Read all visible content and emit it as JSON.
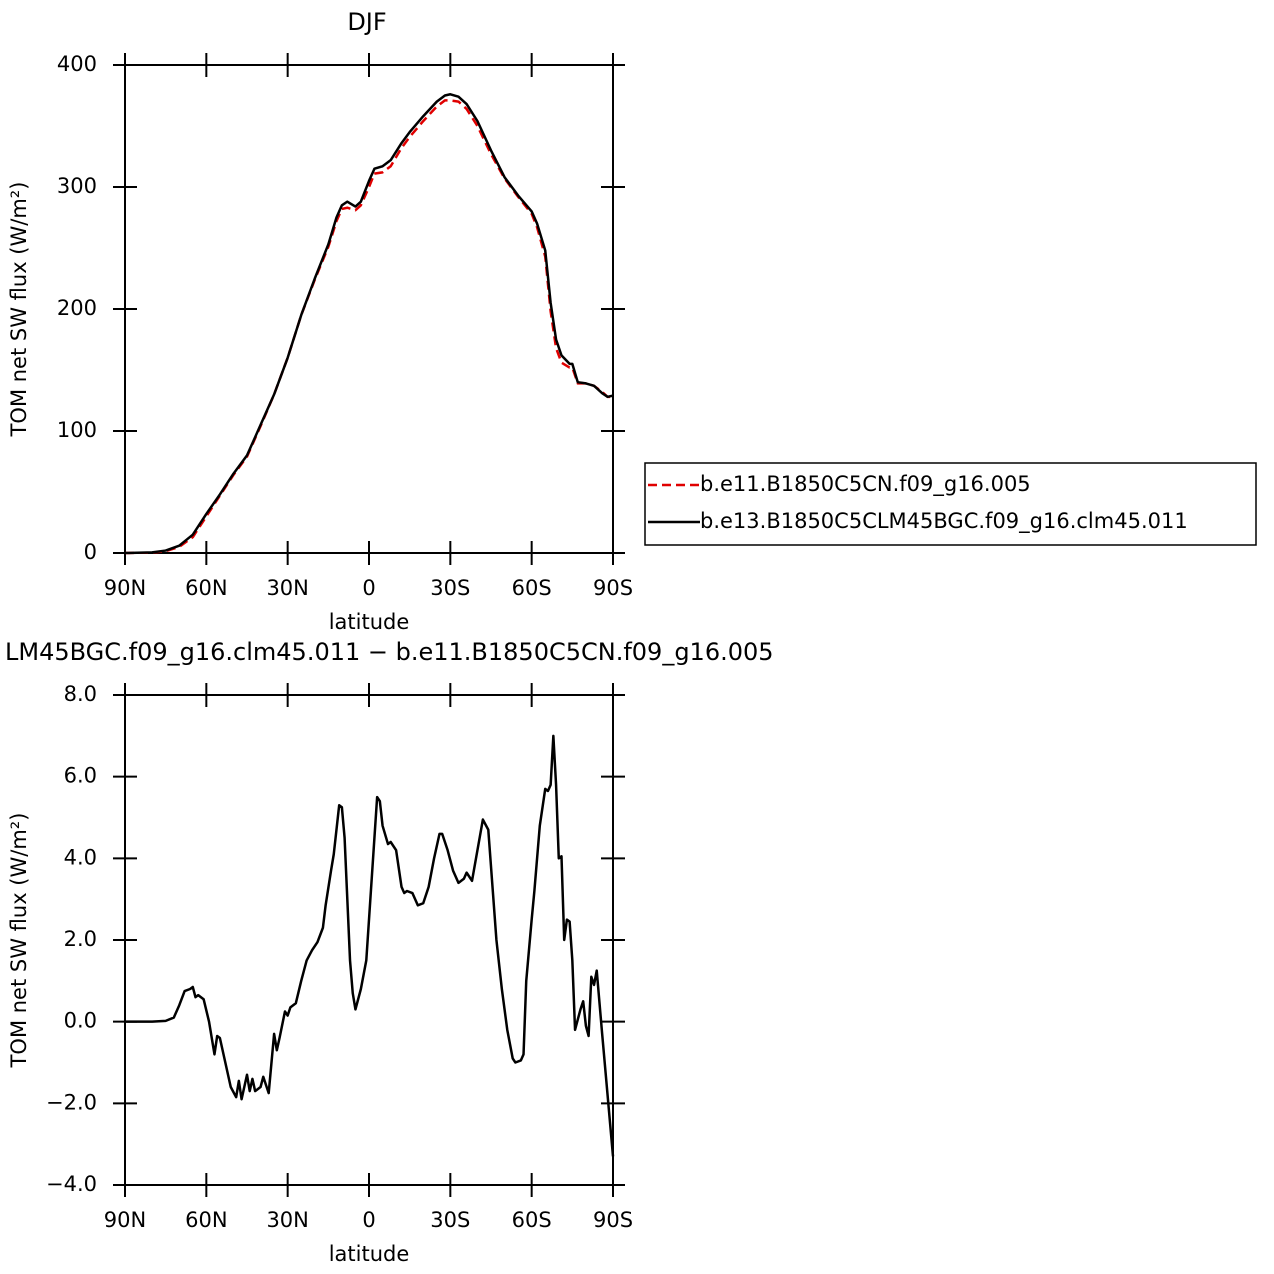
{
  "chart_data": [
    {
      "type": "line",
      "title": "DJF",
      "xlabel": "latitude",
      "ylabel": "TOM net SW flux (W/m²)",
      "xlim": [
        90,
        -90
      ],
      "ylim": [
        0,
        400
      ],
      "xticks": [
        {
          "value": 90,
          "label": "90N"
        },
        {
          "value": 60,
          "label": "60N"
        },
        {
          "value": 30,
          "label": "30N"
        },
        0,
        {
          "value": -30,
          "label": "30S"
        },
        {
          "value": -60,
          "label": "60S"
        },
        {
          "value": -90,
          "label": "90S"
        }
      ],
      "yticks": [
        0,
        100,
        200,
        300,
        400
      ],
      "legend": "outside right",
      "x": [
        90,
        80,
        75,
        70,
        65,
        60,
        55,
        50,
        45,
        40,
        35,
        30,
        25,
        20,
        15,
        12,
        10,
        8,
        5,
        3,
        0,
        -2,
        -5,
        -8,
        -12,
        -15,
        -20,
        -25,
        -28,
        -30,
        -33,
        -36,
        -40,
        -45,
        -50,
        -55,
        -60,
        -62,
        -65,
        -67,
        -69,
        -71,
        -74,
        -75,
        -77,
        -80,
        -83,
        -86,
        -88,
        -90
      ],
      "series": [
        {
          "name": "b.e11.B1850C5CN.f09_g16.005",
          "color": "#e00000",
          "dash": "dashed",
          "values": [
            0,
            0.3,
            1.5,
            5,
            13,
            30,
            47,
            64,
            79,
            104,
            130,
            160,
            195,
            224,
            251,
            272,
            282,
            283,
            281,
            285,
            300,
            311,
            312,
            317,
            332,
            341,
            354,
            366,
            371,
            371,
            370,
            364,
            350,
            327,
            307,
            292,
            278,
            267,
            243,
            198,
            168,
            156,
            152,
            152,
            139,
            139,
            137,
            132,
            128,
            128
          ]
        },
        {
          "name": "b.e13.B1850C5CLM45BGC.f09_g16.clm45.011",
          "color": "#000000",
          "dash": "solid",
          "values": [
            0,
            0.5,
            2,
            6,
            15,
            32,
            48,
            65,
            80,
            105,
            130,
            160,
            195,
            225,
            253,
            275,
            285,
            288,
            284,
            288,
            305,
            315,
            317,
            322,
            336,
            345,
            358,
            370,
            375,
            376,
            374,
            368,
            354,
            330,
            308,
            293,
            280,
            270,
            248,
            205,
            175,
            162,
            155,
            155,
            140,
            139,
            137,
            131,
            128,
            129
          ]
        }
      ]
    },
    {
      "type": "line",
      "title": "LM45BGC.f09_g16.clm45.011 − b.e11.B1850C5CN.f09_g16.005",
      "xlabel": "latitude",
      "ylabel": "TOM net SW flux (W/m²)",
      "xlim": [
        90,
        -90
      ],
      "ylim": [
        -4,
        8
      ],
      "xticks": [
        {
          "value": 90,
          "label": "90N"
        },
        {
          "value": 60,
          "label": "60N"
        },
        {
          "value": 30,
          "label": "30N"
        },
        0,
        {
          "value": -30,
          "label": "30S"
        },
        {
          "value": -60,
          "label": "60S"
        },
        {
          "value": -90,
          "label": "90S"
        }
      ],
      "yticks": [
        {
          "value": -4,
          "label": "−4.0"
        },
        {
          "value": -2,
          "label": "−2.0"
        },
        {
          "value": 0,
          "label": "0.0"
        },
        {
          "value": 2,
          "label": "2.0"
        },
        {
          "value": 4,
          "label": "4.0"
        },
        {
          "value": 6,
          "label": "6.0"
        },
        {
          "value": 8,
          "label": "8.0"
        }
      ],
      "x": [
        90,
        85,
        80,
        75,
        72,
        70,
        68,
        66,
        65,
        64,
        63,
        61,
        59,
        57,
        56,
        55,
        53,
        51,
        49,
        48,
        47,
        45,
        44,
        43,
        42,
        40,
        39,
        37,
        35,
        34,
        33,
        31,
        30,
        29,
        27,
        25,
        23,
        21,
        19,
        17,
        16,
        14,
        13,
        11,
        10,
        9,
        7,
        6,
        5,
        3,
        1,
        -1,
        -3,
        -4,
        -5,
        -7,
        -8,
        -10,
        -12,
        -13,
        -14,
        -16,
        -18,
        -20,
        -22,
        -24,
        -26,
        -27,
        -29,
        -31,
        -33,
        -35,
        -36,
        -38,
        -40,
        -42,
        -44,
        -47,
        -49,
        -51,
        -53,
        -54,
        -56,
        -57,
        -58,
        -60,
        -61,
        -63,
        -65,
        -66,
        -67,
        -68,
        -69,
        -70,
        -71,
        -72,
        -73,
        -74,
        -75,
        -76,
        -78,
        -79,
        -80,
        -81,
        -82,
        -83,
        -84,
        -86,
        -88,
        -90
      ],
      "series": [
        {
          "color": "#000000",
          "dash": "solid",
          "values": [
            0,
            0,
            0,
            0.02,
            0.1,
            0.4,
            0.75,
            0.8,
            0.85,
            0.6,
            0.65,
            0.55,
            0,
            -0.8,
            -0.35,
            -0.4,
            -1.0,
            -1.6,
            -1.85,
            -1.45,
            -1.9,
            -1.3,
            -1.7,
            -1.4,
            -1.7,
            -1.6,
            -1.35,
            -1.75,
            -0.3,
            -0.7,
            -0.4,
            0.25,
            0.15,
            0.35,
            0.45,
            1.0,
            1.5,
            1.75,
            1.95,
            2.3,
            2.85,
            3.7,
            4.1,
            5.3,
            5.25,
            4.5,
            1.5,
            0.7,
            0.3,
            0.8,
            1.5,
            3.5,
            5.5,
            5.4,
            4.8,
            4.35,
            4.4,
            4.2,
            3.3,
            3.15,
            3.2,
            3.15,
            2.85,
            2.9,
            3.3,
            4.0,
            4.6,
            4.6,
            4.2,
            3.7,
            3.4,
            3.5,
            3.65,
            3.45,
            4.2,
            4.95,
            4.7,
            2.0,
            0.8,
            -0.2,
            -0.9,
            -1.0,
            -0.95,
            -0.8,
            1.0,
            2.5,
            3.2,
            4.8,
            5.7,
            5.65,
            5.8,
            7.0,
            5.8,
            4.0,
            4.05,
            2.0,
            2.5,
            2.45,
            1.5,
            -0.2,
            0.3,
            0.5,
            -0.1,
            -0.35,
            1.1,
            0.9,
            1.25,
            -0.3,
            -1.8,
            -3.3
          ]
        }
      ]
    }
  ]
}
